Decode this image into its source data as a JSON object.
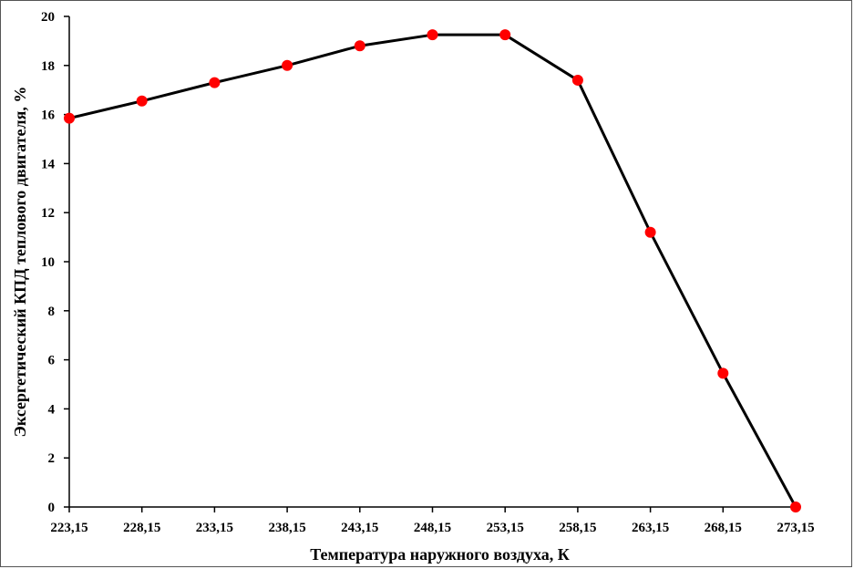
{
  "chart_data": {
    "type": "line",
    "title": "",
    "xlabel": "Температура наружного воздуха, К",
    "ylabel": "Эксергетический КПД теплового двигателя, %",
    "categories": [
      "223,15",
      "228,15",
      "233,15",
      "238,15",
      "243,15",
      "248,15",
      "253,15",
      "258,15",
      "263,15",
      "268,15",
      "273,15"
    ],
    "x": [
      223.15,
      228.15,
      233.15,
      238.15,
      243.15,
      248.15,
      253.15,
      258.15,
      263.15,
      268.15,
      273.15
    ],
    "series": [
      {
        "values": [
          15.85,
          16.55,
          17.3,
          18.0,
          18.8,
          19.25,
          19.25,
          17.4,
          11.2,
          5.45,
          0.0
        ]
      }
    ],
    "ylim": [
      0,
      20
    ],
    "yticks": [
      "0",
      "2",
      "4",
      "6",
      "8",
      "10",
      "12",
      "14",
      "16",
      "18",
      "20"
    ],
    "grid": false,
    "legend": "none",
    "colors": {
      "line": "#000000",
      "marker": "#ff0000",
      "axis": "#000000"
    }
  }
}
